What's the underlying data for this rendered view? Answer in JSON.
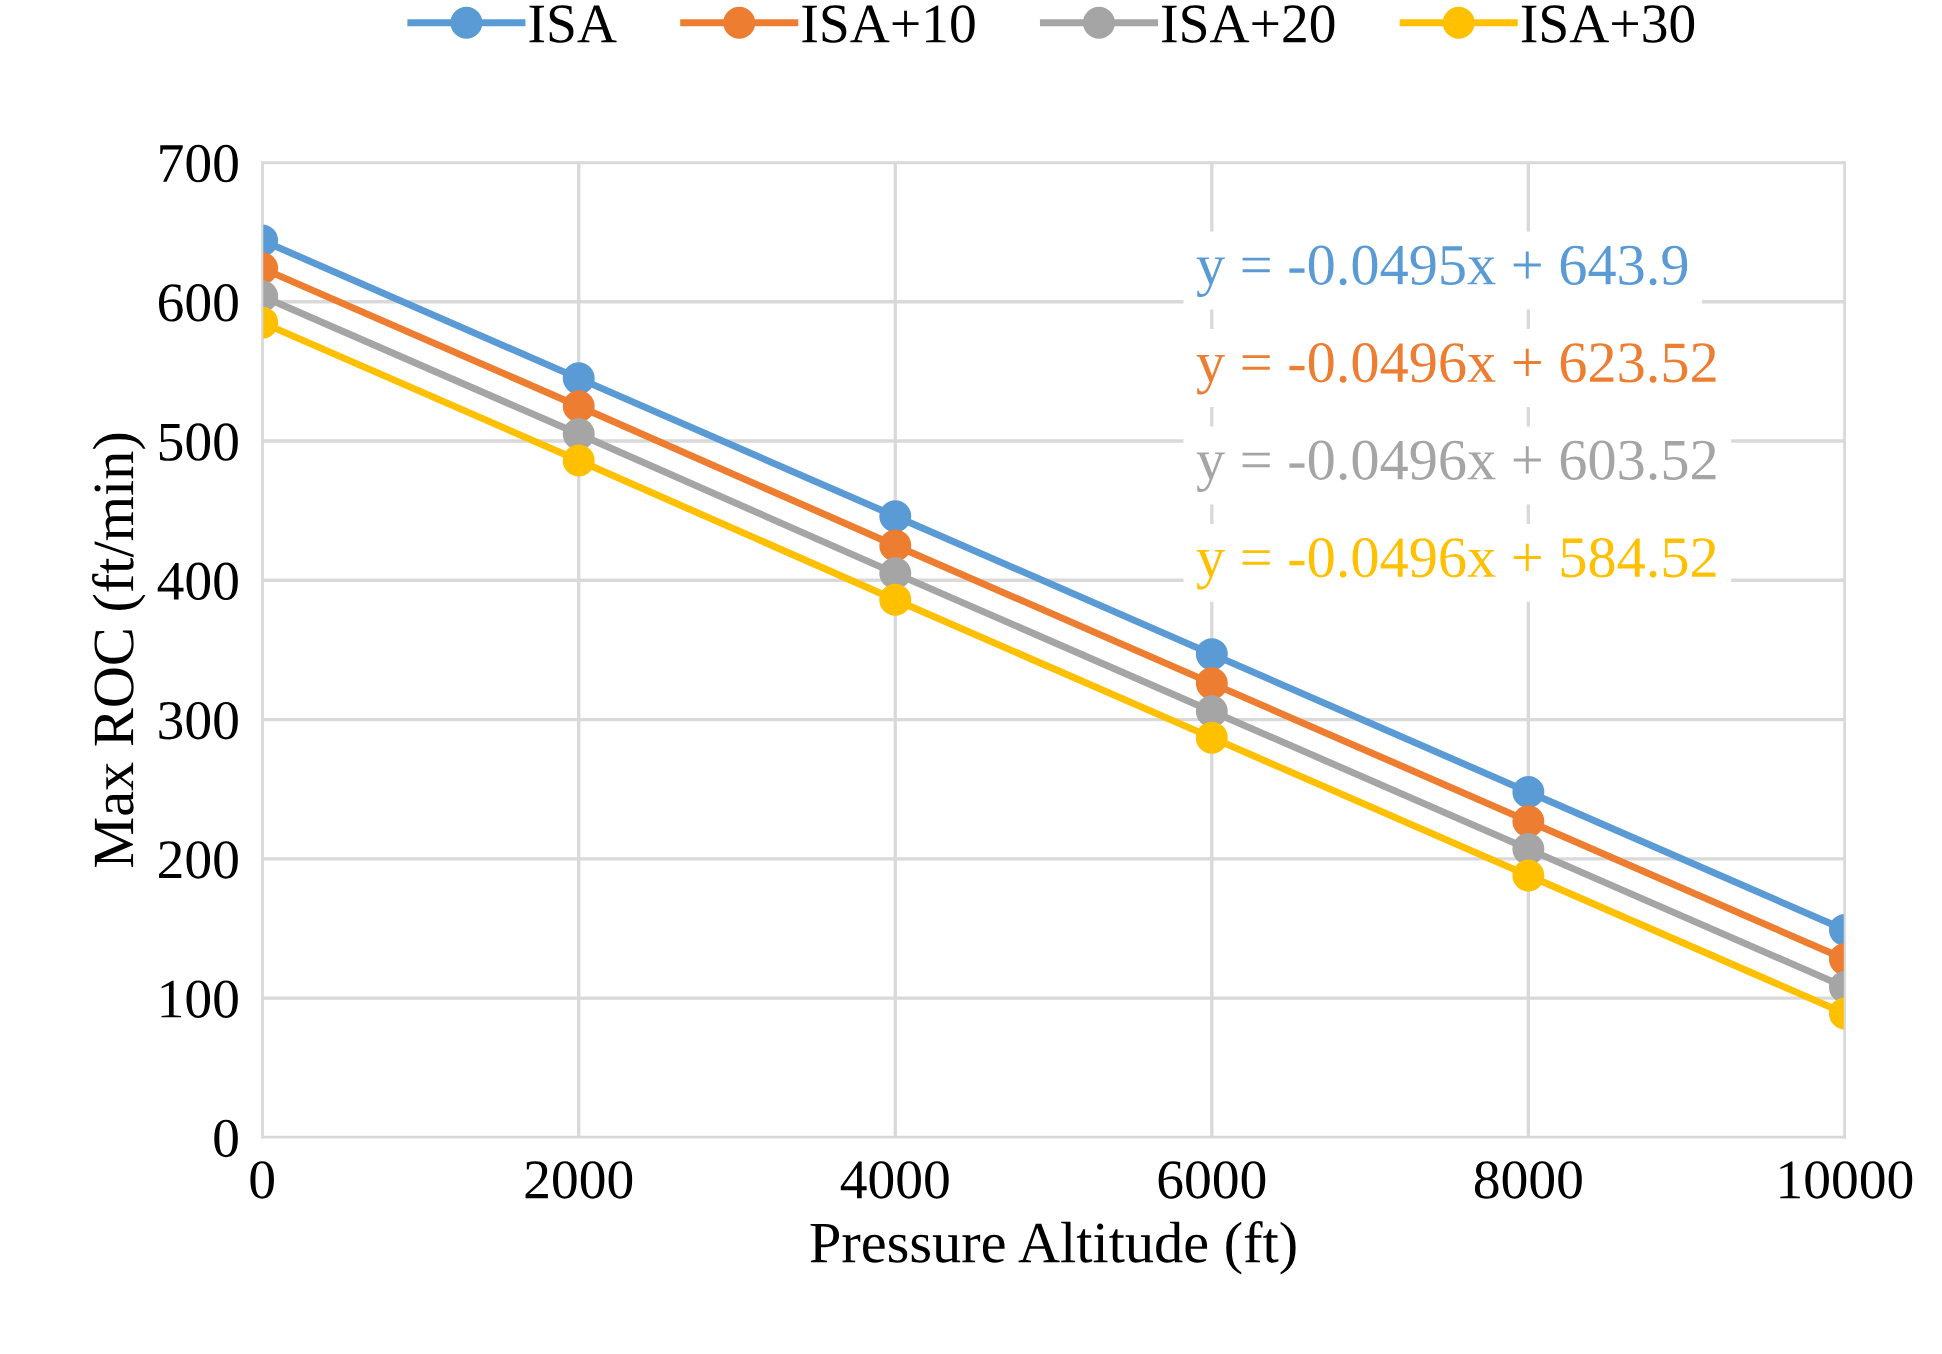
{
  "chart_data": {
    "type": "line",
    "xlabel": "Pressure Altitude (ft)",
    "ylabel": "Max ROC (ft/min)",
    "x": [
      0,
      2000,
      4000,
      6000,
      8000,
      10000
    ],
    "series": [
      {
        "name": "ISA",
        "color": "#5b9bd5",
        "values": [
          644,
          545,
          446,
          347,
          248,
          149
        ]
      },
      {
        "name": "ISA+10",
        "color": "#ed7d31",
        "values": [
          624,
          525,
          425,
          326,
          227,
          128
        ]
      },
      {
        "name": "ISA+20",
        "color": "#a5a5a5",
        "values": [
          604,
          505,
          405,
          306,
          207,
          108
        ]
      },
      {
        "name": "ISA+30",
        "color": "#ffc000",
        "values": [
          585,
          486,
          386,
          287,
          188,
          89
        ]
      }
    ],
    "annotations": [
      "y = -0.0495x + 643.9",
      "y = -0.0496x + 623.52",
      "y = -0.0496x + 603.52",
      "y = -0.0496x + 584.52"
    ],
    "xlim": [
      0,
      10000
    ],
    "xticks": [
      0,
      2000,
      4000,
      6000,
      8000,
      10000
    ],
    "ylim": [
      0,
      700
    ],
    "yticks": [
      0,
      100,
      200,
      300,
      400,
      500,
      600,
      700
    ],
    "grid": true,
    "legend": "top",
    "marker": "circle"
  }
}
